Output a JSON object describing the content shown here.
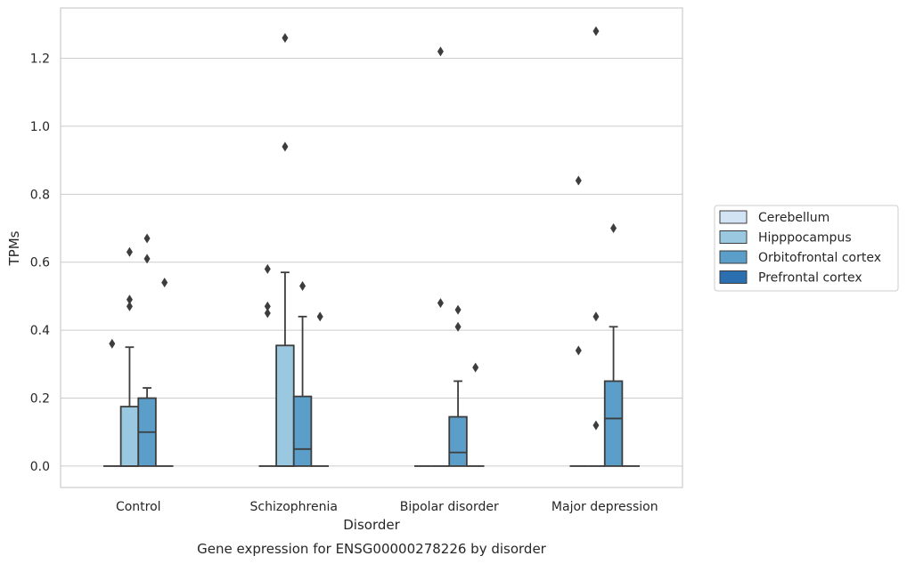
{
  "chart_data": {
    "type": "box",
    "xlabel": "Disorder",
    "ylabel": "TPMs",
    "caption": "Gene expression for ENSG00000278226 by disorder",
    "categories": [
      "Control",
      "Schizophrenia",
      "Bipolar disorder",
      "Major depression"
    ],
    "ylim": [
      -0.063,
      1.348
    ],
    "yticks": [
      "0.0",
      "0.2",
      "0.4",
      "0.6",
      "0.8",
      "1.0",
      "1.2"
    ],
    "grid": "horizontal",
    "legend_position": "right",
    "series": [
      {
        "name": "Cerebellum",
        "color": "#d2e3f3",
        "boxes": [
          {
            "category": "Control",
            "q1": 0,
            "median": 0,
            "q3": 0,
            "whisker_low": 0,
            "whisker_high": 0,
            "outliers": [
              0.36
            ]
          },
          {
            "category": "Schizophrenia",
            "q1": 0,
            "median": 0,
            "q3": 0,
            "whisker_low": 0,
            "whisker_high": 0,
            "outliers": [
              0.58,
              0.47,
              0.45
            ]
          },
          {
            "category": "Bipolar disorder",
            "q1": 0,
            "median": 0,
            "q3": 0,
            "whisker_low": 0,
            "whisker_high": 0,
            "outliers": []
          },
          {
            "category": "Major depression",
            "q1": 0,
            "median": 0,
            "q3": 0,
            "whisker_low": 0,
            "whisker_high": 0,
            "outliers": [
              0.84,
              0.34
            ]
          }
        ]
      },
      {
        "name": "Hipppocampus",
        "color": "#9ac8e0",
        "boxes": [
          {
            "category": "Control",
            "q1": 0,
            "median": 0,
            "q3": 0.175,
            "whisker_low": 0,
            "whisker_high": 0.35,
            "outliers": [
              0.63,
              0.49,
              0.47
            ]
          },
          {
            "category": "Schizophrenia",
            "q1": 0,
            "median": 0,
            "q3": 0.355,
            "whisker_low": 0,
            "whisker_high": 0.57,
            "outliers": [
              1.26,
              0.94
            ]
          },
          {
            "category": "Bipolar disorder",
            "q1": 0,
            "median": 0,
            "q3": 0,
            "whisker_low": 0,
            "whisker_high": 0,
            "outliers": [
              1.22,
              0.48
            ]
          },
          {
            "category": "Major depression",
            "q1": 0,
            "median": 0,
            "q3": 0,
            "whisker_low": 0,
            "whisker_high": 0,
            "outliers": [
              1.28,
              0.44,
              0.12
            ]
          }
        ]
      },
      {
        "name": "Orbitofrontal cortex",
        "color": "#5a9ec9",
        "boxes": [
          {
            "category": "Control",
            "q1": 0,
            "median": 0.1,
            "q3": 0.2,
            "whisker_low": 0,
            "whisker_high": 0.23,
            "outliers": [
              0.67,
              0.61
            ]
          },
          {
            "category": "Schizophrenia",
            "q1": 0,
            "median": 0.05,
            "q3": 0.205,
            "whisker_low": 0,
            "whisker_high": 0.44,
            "outliers": [
              0.53
            ]
          },
          {
            "category": "Bipolar disorder",
            "q1": 0,
            "median": 0.04,
            "q3": 0.145,
            "whisker_low": 0,
            "whisker_high": 0.25,
            "outliers": [
              0.46,
              0.41
            ]
          },
          {
            "category": "Major depression",
            "q1": 0,
            "median": 0.14,
            "q3": 0.25,
            "whisker_low": 0,
            "whisker_high": 0.41,
            "outliers": [
              0.7
            ]
          }
        ]
      },
      {
        "name": "Prefrontal cortex",
        "color": "#2c6fb0",
        "boxes": [
          {
            "category": "Control",
            "q1": 0,
            "median": 0,
            "q3": 0,
            "whisker_low": 0,
            "whisker_high": 0,
            "outliers": [
              0.54
            ]
          },
          {
            "category": "Schizophrenia",
            "q1": 0,
            "median": 0,
            "q3": 0,
            "whisker_low": 0,
            "whisker_high": 0,
            "outliers": [
              0.44
            ]
          },
          {
            "category": "Bipolar disorder",
            "q1": 0,
            "median": 0,
            "q3": 0,
            "whisker_low": 0,
            "whisker_high": 0,
            "outliers": [
              0.29
            ]
          },
          {
            "category": "Major depression",
            "q1": 0,
            "median": 0,
            "q3": 0,
            "whisker_low": 0,
            "whisker_high": 0,
            "outliers": []
          }
        ]
      }
    ]
  }
}
